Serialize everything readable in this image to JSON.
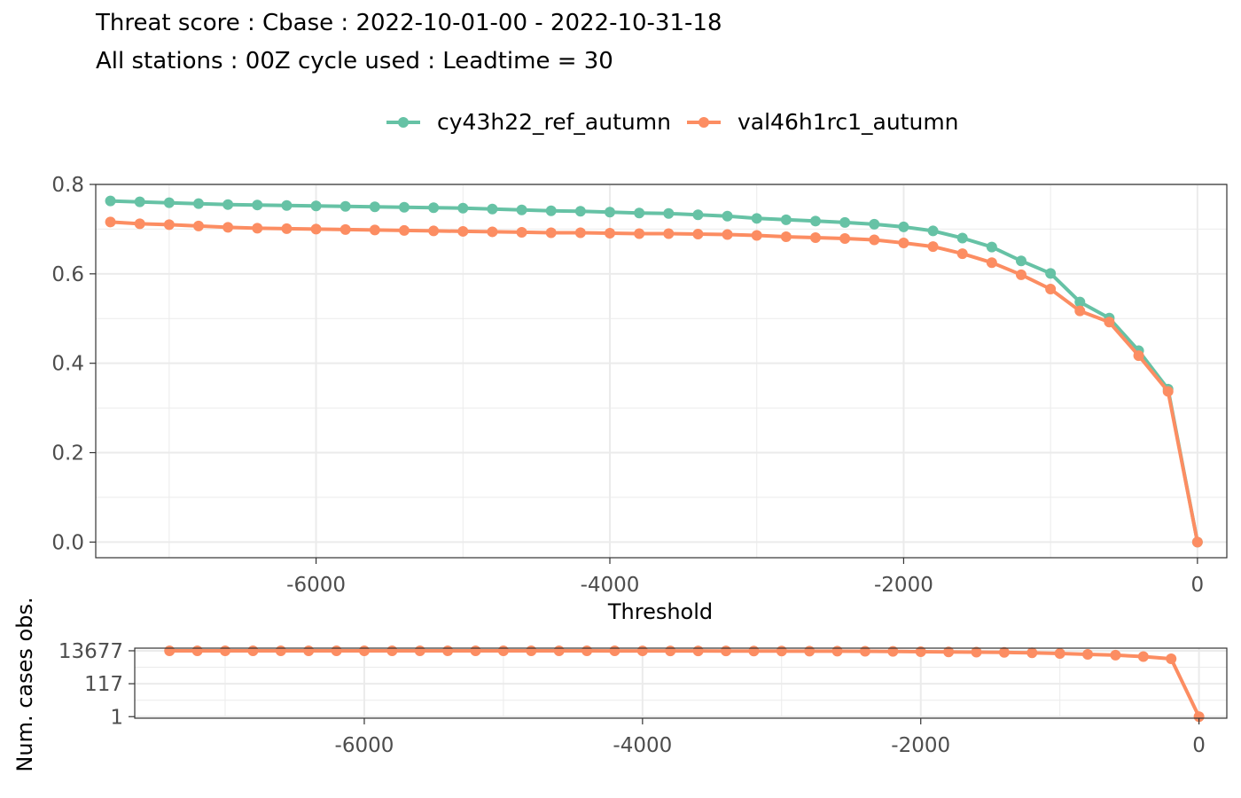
{
  "title": "Threat score : Cbase : 2022-10-01-00 - 2022-10-31-18",
  "subtitle": "All stations : 00Z cycle used : Leadtime = 30",
  "colors": {
    "series1": "#66c2a5",
    "series2": "#fc8d62",
    "grid": "#ebebeb",
    "panel_border": "#333333",
    "tick_text": "#4d4d4d"
  },
  "chart_data": [
    {
      "type": "line",
      "title": "Threat score : Cbase : 2022-10-01-00 - 2022-10-31-18",
      "subtitle": "All stations : 00Z cycle used : Leadtime = 30",
      "xlabel": "Threshold",
      "ylabel": "",
      "xlim": [
        -7500,
        200
      ],
      "ylim": [
        -0.035,
        0.8
      ],
      "xticks": [
        -6000,
        -4000,
        -2000,
        0
      ],
      "xtick_labels": [
        "-6000",
        "-4000",
        "-2000",
        "0"
      ],
      "yticks": [
        0.0,
        0.2,
        0.4,
        0.6,
        0.8
      ],
      "ytick_labels": [
        "0.0",
        "0.2",
        "0.4",
        "0.6",
        "0.8"
      ],
      "grid": true,
      "legend_position": "top",
      "x": [
        -7400,
        -7200,
        -7000,
        -6800,
        -6600,
        -6400,
        -6200,
        -6000,
        -5800,
        -5600,
        -5400,
        -5200,
        -5000,
        -4800,
        -4600,
        -4400,
        -4200,
        -4000,
        -3800,
        -3600,
        -3400,
        -3200,
        -3000,
        -2800,
        -2600,
        -2400,
        -2200,
        -2000,
        -1800,
        -1600,
        -1400,
        -1200,
        -1000,
        -800,
        -600,
        -400,
        -200,
        0
      ],
      "series": [
        {
          "name": "cy43h22_ref_autumn",
          "color": "#66c2a5",
          "values": [
            0.763,
            0.761,
            0.759,
            0.757,
            0.755,
            0.754,
            0.753,
            0.752,
            0.751,
            0.75,
            0.749,
            0.748,
            0.747,
            0.745,
            0.743,
            0.741,
            0.74,
            0.738,
            0.736,
            0.735,
            0.732,
            0.729,
            0.724,
            0.721,
            0.718,
            0.715,
            0.711,
            0.705,
            0.696,
            0.68,
            0.66,
            0.629,
            0.601,
            0.537,
            0.501,
            0.428,
            0.342,
            0.0
          ]
        },
        {
          "name": "val46h1rc1_autumn",
          "color": "#fc8d62",
          "values": [
            0.716,
            0.712,
            0.71,
            0.707,
            0.704,
            0.702,
            0.701,
            0.7,
            0.699,
            0.698,
            0.697,
            0.696,
            0.695,
            0.694,
            0.693,
            0.692,
            0.692,
            0.691,
            0.69,
            0.69,
            0.689,
            0.688,
            0.686,
            0.683,
            0.681,
            0.679,
            0.676,
            0.669,
            0.661,
            0.645,
            0.625,
            0.598,
            0.566,
            0.517,
            0.492,
            0.417,
            0.337,
            0.0
          ]
        }
      ]
    },
    {
      "type": "line",
      "title": "",
      "xlabel": "",
      "ylabel": "Num. cases obs.",
      "y_scale": "log",
      "xlim": [
        -7650,
        200
      ],
      "ylim": [
        0.8,
        20000
      ],
      "xticks": [
        -6000,
        -4000,
        -2000,
        0
      ],
      "xtick_labels": [
        "-6000",
        "-4000",
        "-2000",
        "0"
      ],
      "yticks": [
        1,
        117,
        13677
      ],
      "ytick_labels": [
        "1",
        "117",
        "13677"
      ],
      "grid": true,
      "x": [
        -7400,
        -7200,
        -7000,
        -6800,
        -6600,
        -6400,
        -6200,
        -6000,
        -5800,
        -5600,
        -5400,
        -5200,
        -5000,
        -4800,
        -4600,
        -4400,
        -4200,
        -4000,
        -3800,
        -3600,
        -3400,
        -3200,
        -3000,
        -2800,
        -2600,
        -2400,
        -2200,
        -2000,
        -1800,
        -1600,
        -1400,
        -1200,
        -1000,
        -800,
        -600,
        -400,
        -200,
        0
      ],
      "series": [
        {
          "name": "val46h1rc1_autumn",
          "color": "#fc8d62",
          "values": [
            13677,
            13670,
            13660,
            13650,
            13640,
            13630,
            13620,
            13610,
            13600,
            13590,
            13580,
            13570,
            13560,
            13550,
            13540,
            13530,
            13520,
            13500,
            13450,
            13400,
            13300,
            13200,
            13100,
            13000,
            12900,
            12800,
            12500,
            12000,
            11600,
            11200,
            10800,
            10200,
            9300,
            8200,
            7300,
            5900,
            4300,
            1
          ]
        }
      ]
    }
  ]
}
